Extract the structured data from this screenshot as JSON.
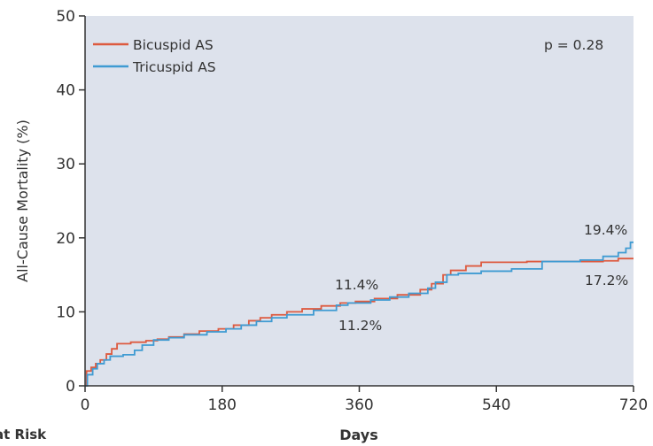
{
  "chart_data": {
    "type": "line",
    "step": true,
    "xlabel": "Days",
    "ylabel": "All-Cause Mortality (%)",
    "xlim": [
      0,
      720
    ],
    "ylim": [
      0,
      50
    ],
    "xticks": [
      "0",
      "180",
      "360",
      "540",
      "720"
    ],
    "yticks": [
      "0",
      "10",
      "20",
      "30",
      "40",
      "50"
    ],
    "plot_background": "#dde2ec",
    "legend_position": "top-left",
    "series": [
      {
        "name": "Bicuspid AS",
        "color": "#dd5a3f",
        "points": [
          [
            0,
            0
          ],
          [
            2,
            2.0
          ],
          [
            8,
            2.5
          ],
          [
            14,
            3.0
          ],
          [
            20,
            3.5
          ],
          [
            28,
            4.3
          ],
          [
            35,
            5.0
          ],
          [
            42,
            5.7
          ],
          [
            60,
            5.9
          ],
          [
            80,
            6.1
          ],
          [
            95,
            6.3
          ],
          [
            110,
            6.6
          ],
          [
            130,
            7.0
          ],
          [
            150,
            7.4
          ],
          [
            175,
            7.7
          ],
          [
            195,
            8.2
          ],
          [
            215,
            8.8
          ],
          [
            230,
            9.2
          ],
          [
            245,
            9.6
          ],
          [
            265,
            10.0
          ],
          [
            285,
            10.4
          ],
          [
            310,
            10.8
          ],
          [
            335,
            11.2
          ],
          [
            355,
            11.4
          ],
          [
            380,
            11.8
          ],
          [
            410,
            12.3
          ],
          [
            440,
            13.0
          ],
          [
            455,
            13.8
          ],
          [
            470,
            15.0
          ],
          [
            480,
            15.6
          ],
          [
            500,
            16.2
          ],
          [
            520,
            16.7
          ],
          [
            580,
            16.8
          ],
          [
            640,
            16.8
          ],
          [
            680,
            16.9
          ],
          [
            700,
            17.2
          ],
          [
            720,
            17.2
          ]
        ]
      },
      {
        "name": "Tricuspid AS",
        "color": "#3f9bd2",
        "points": [
          [
            0,
            0
          ],
          [
            3,
            1.5
          ],
          [
            10,
            2.3
          ],
          [
            16,
            3.0
          ],
          [
            25,
            3.5
          ],
          [
            33,
            4.0
          ],
          [
            50,
            4.2
          ],
          [
            65,
            4.8
          ],
          [
            75,
            5.5
          ],
          [
            90,
            6.2
          ],
          [
            110,
            6.5
          ],
          [
            130,
            6.9
          ],
          [
            160,
            7.3
          ],
          [
            185,
            7.7
          ],
          [
            205,
            8.2
          ],
          [
            225,
            8.7
          ],
          [
            245,
            9.2
          ],
          [
            265,
            9.6
          ],
          [
            300,
            10.2
          ],
          [
            330,
            10.9
          ],
          [
            345,
            11.2
          ],
          [
            375,
            11.6
          ],
          [
            400,
            12.0
          ],
          [
            425,
            12.5
          ],
          [
            450,
            13.2
          ],
          [
            460,
            14.0
          ],
          [
            475,
            15.0
          ],
          [
            490,
            15.2
          ],
          [
            520,
            15.5
          ],
          [
            560,
            15.8
          ],
          [
            600,
            16.8
          ],
          [
            650,
            17.0
          ],
          [
            680,
            17.5
          ],
          [
            700,
            18.0
          ],
          [
            710,
            18.6
          ],
          [
            716,
            19.4
          ],
          [
            720,
            19.4
          ]
        ]
      }
    ],
    "annotations": [
      "p = 0.28",
      "11.4%",
      "11.2%",
      "19.4%",
      "17.2%"
    ],
    "below_axis_text": "at Risk"
  }
}
